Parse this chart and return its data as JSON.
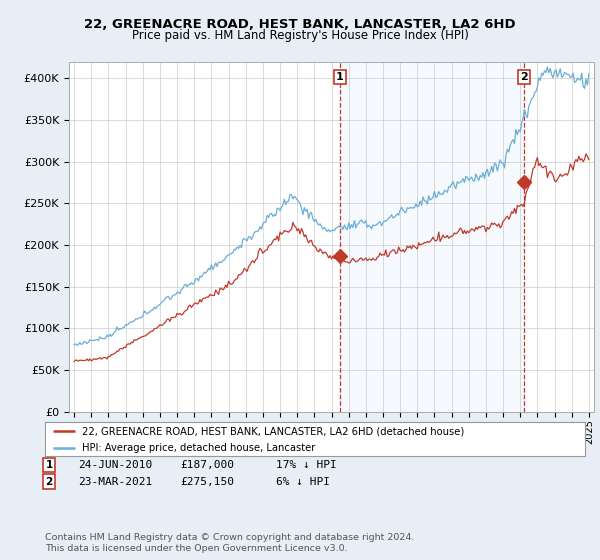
{
  "title": "22, GREENACRE ROAD, HEST BANK, LANCASTER, LA2 6HD",
  "subtitle": "Price paid vs. HM Land Registry's House Price Index (HPI)",
  "ylim": [
    0,
    420000
  ],
  "yticks": [
    0,
    50000,
    100000,
    150000,
    200000,
    250000,
    300000,
    350000,
    400000
  ],
  "ytick_labels": [
    "£0",
    "£50K",
    "£100K",
    "£150K",
    "£200K",
    "£250K",
    "£300K",
    "£350K",
    "£400K"
  ],
  "sale1_x": 2010.48,
  "sale1_price": 187000,
  "sale2_x": 2021.22,
  "sale2_price": 275150,
  "legend_line1": "22, GREENACRE ROAD, HEST BANK, LANCASTER, LA2 6HD (detached house)",
  "legend_line2": "HPI: Average price, detached house, Lancaster",
  "footer": "Contains HM Land Registry data © Crown copyright and database right 2024.\nThis data is licensed under the Open Government Licence v3.0.",
  "hpi_color": "#6baed6",
  "price_color": "#c0392b",
  "shade_color": "#ddeeff",
  "background_color": "#e8eef5",
  "plot_bg_color": "#ffffff"
}
